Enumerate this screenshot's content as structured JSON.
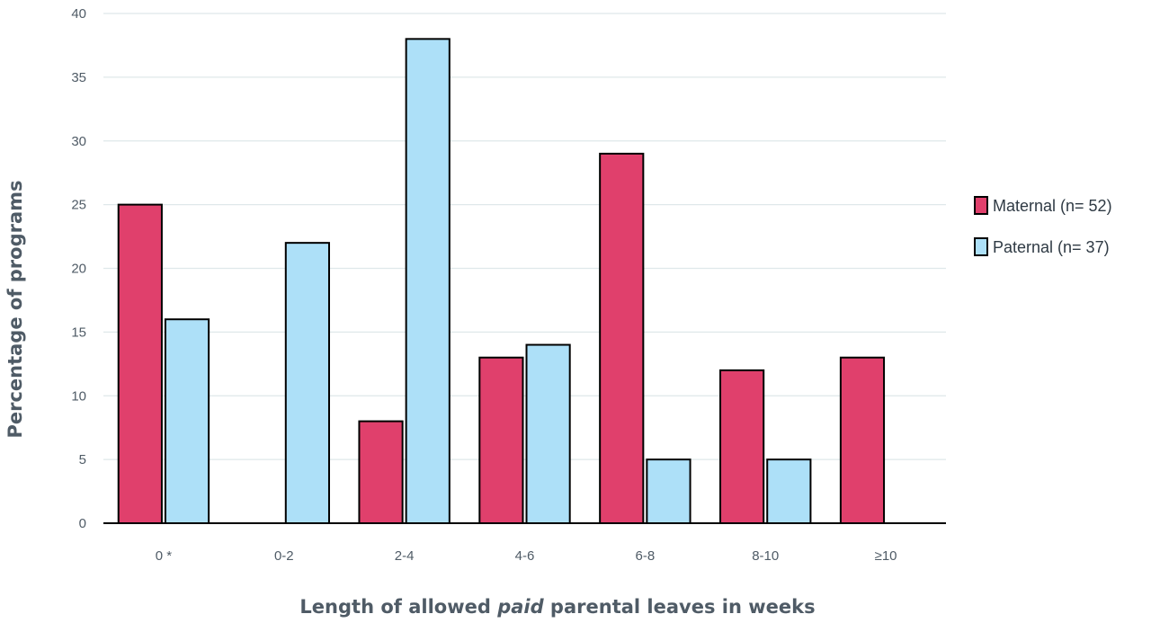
{
  "chart_data": {
    "type": "bar",
    "title": "",
    "xlabel_parts": [
      "Length of allowed ",
      "paid",
      " parental leaves in weeks"
    ],
    "ylabel": "Percentage of programs",
    "categories": [
      "0 *",
      "0-2",
      "2-4",
      "4-6",
      "6-8",
      "8-10",
      "≥10"
    ],
    "series": [
      {
        "name": "Maternal (n= 52)",
        "color": "#e0406c",
        "values": [
          25,
          0,
          8,
          13,
          29,
          12,
          13
        ]
      },
      {
        "name": "Paternal (n= 37)",
        "color": "#ade0f8",
        "values": [
          16,
          22,
          38,
          14,
          5,
          5,
          0
        ]
      }
    ],
    "ylim": [
      0,
      40
    ],
    "yticks": [
      0,
      5,
      10,
      15,
      20,
      25,
      30,
      35,
      40
    ],
    "grid": true,
    "legend_position": "right"
  }
}
